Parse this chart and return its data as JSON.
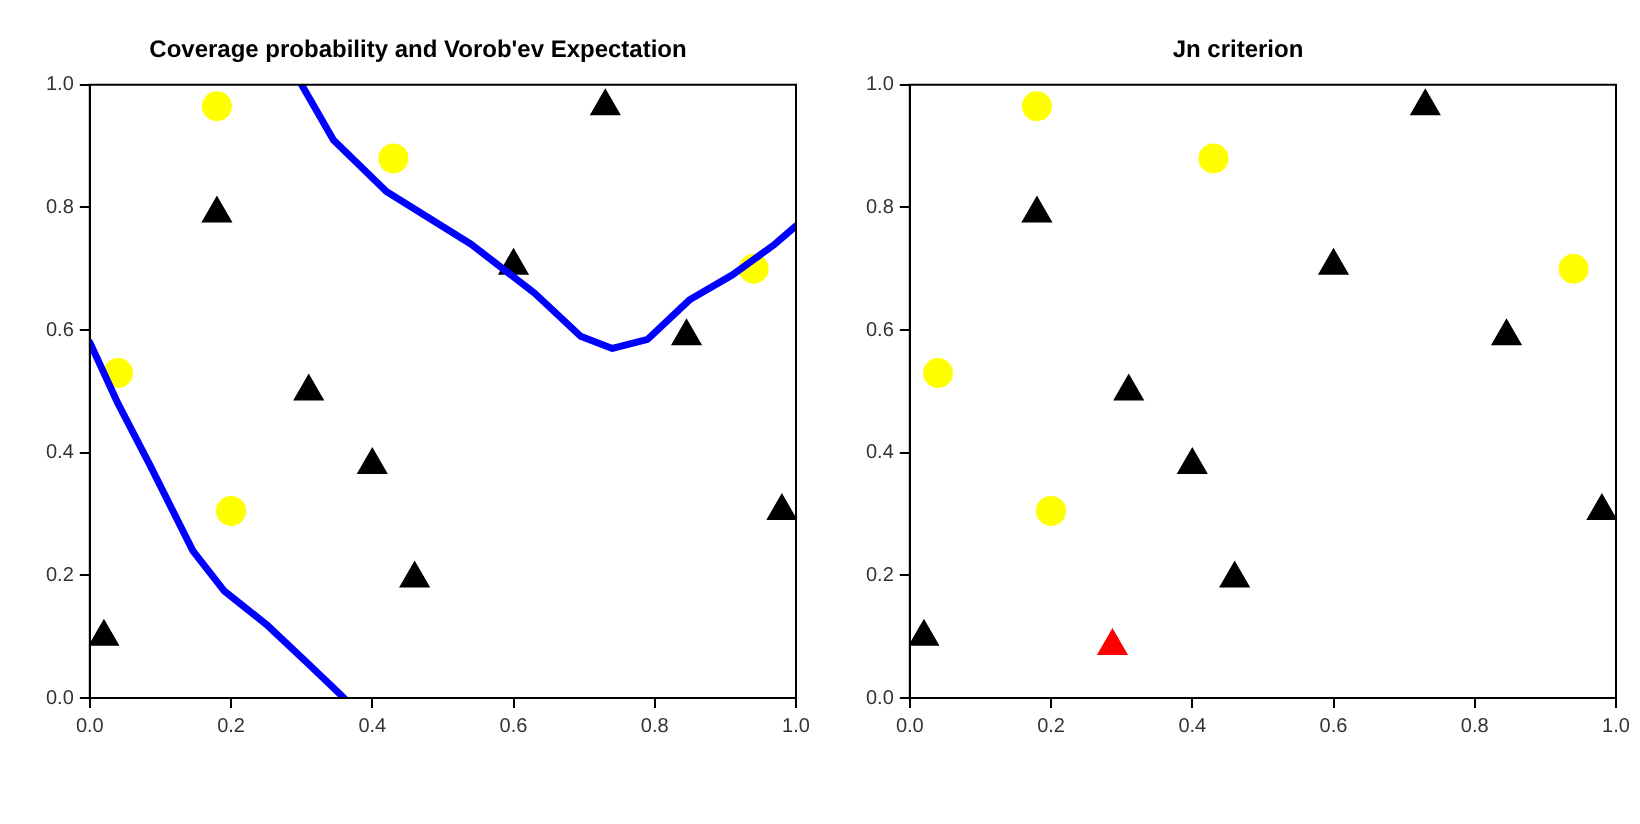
{
  "chart_data": [
    {
      "type": "scatter",
      "title": "Coverage probability and Vorob'ev Expectation",
      "xlim": [
        0,
        1
      ],
      "ylim": [
        0,
        1
      ],
      "xticks": [
        {
          "value": 0,
          "label": "0.0"
        },
        {
          "value": 0.2,
          "label": "0.2"
        },
        {
          "value": 0.4,
          "label": "0.4"
        },
        {
          "value": 0.6,
          "label": "0.6"
        },
        {
          "value": 0.8,
          "label": "0.8"
        },
        {
          "value": 1,
          "label": "1.0"
        }
      ],
      "yticks": [
        {
          "value": 0,
          "label": "0.0"
        },
        {
          "value": 0.2,
          "label": "0.2"
        },
        {
          "value": 0.4,
          "label": "0.4"
        },
        {
          "value": 0.6,
          "label": "0.6"
        },
        {
          "value": 0.8,
          "label": "0.8"
        },
        {
          "value": 1,
          "label": "1.0"
        }
      ],
      "grid": false,
      "series": [
        {
          "type": "line",
          "color": "#0000ff",
          "x": [
            0.3,
            0.345,
            0.42,
            0.54,
            0.63,
            0.695,
            0.74,
            0.79,
            0.85,
            0.91,
            0.97,
            1.0
          ],
          "values": [
            1.0,
            0.91,
            0.826,
            0.74,
            0.66,
            0.59,
            0.57,
            0.585,
            0.65,
            0.69,
            0.74,
            0.77
          ]
        },
        {
          "type": "line",
          "color": "#0000ff",
          "x": [
            0.0,
            0.04,
            0.085,
            0.146,
            0.19,
            0.25,
            0.31,
            0.36
          ],
          "values": [
            0.58,
            0.48,
            0.38,
            0.24,
            0.175,
            0.12,
            0.055,
            0.0
          ]
        },
        {
          "type": "scatter",
          "marker": "triangle",
          "color": "#000000",
          "x": [
            0.02,
            0.18,
            0.31,
            0.4,
            0.46,
            0.6,
            0.73,
            0.845,
            0.98
          ],
          "values": [
            0.1,
            0.79,
            0.5,
            0.38,
            0.195,
            0.705,
            0.965,
            0.59,
            0.305
          ]
        },
        {
          "type": "scatter",
          "marker": "circle",
          "color": "#ffff00",
          "x": [
            0.18,
            0.43,
            0.04,
            0.2,
            0.94
          ],
          "values": [
            0.965,
            0.88,
            0.53,
            0.305,
            0.7
          ]
        }
      ]
    },
    {
      "type": "scatter",
      "title": "Jn criterion",
      "xlim": [
        0,
        1
      ],
      "ylim": [
        0,
        1
      ],
      "xticks": [
        {
          "value": 0,
          "label": "0.0"
        },
        {
          "value": 0.2,
          "label": "0.2"
        },
        {
          "value": 0.4,
          "label": "0.4"
        },
        {
          "value": 0.6,
          "label": "0.6"
        },
        {
          "value": 0.8,
          "label": "0.8"
        },
        {
          "value": 1,
          "label": "1.0"
        }
      ],
      "yticks": [
        {
          "value": 0,
          "label": "0.0"
        },
        {
          "value": 0.2,
          "label": "0.2"
        },
        {
          "value": 0.4,
          "label": "0.4"
        },
        {
          "value": 0.6,
          "label": "0.6"
        },
        {
          "value": 0.8,
          "label": "0.8"
        },
        {
          "value": 1,
          "label": "1.0"
        }
      ],
      "grid": false,
      "series": [
        {
          "type": "scatter",
          "marker": "triangle",
          "color": "#000000",
          "x": [
            0.02,
            0.18,
            0.31,
            0.4,
            0.46,
            0.6,
            0.73,
            0.845,
            0.98
          ],
          "values": [
            0.1,
            0.79,
            0.5,
            0.38,
            0.195,
            0.705,
            0.965,
            0.59,
            0.305
          ]
        },
        {
          "type": "scatter",
          "marker": "circle",
          "color": "#ffff00",
          "x": [
            0.18,
            0.43,
            0.04,
            0.2,
            0.94
          ],
          "values": [
            0.965,
            0.88,
            0.53,
            0.305,
            0.7
          ]
        },
        {
          "type": "scatter",
          "marker": "triangle",
          "color": "#ff0000",
          "x": [
            0.287
          ],
          "values": [
            0.085
          ]
        }
      ]
    }
  ]
}
